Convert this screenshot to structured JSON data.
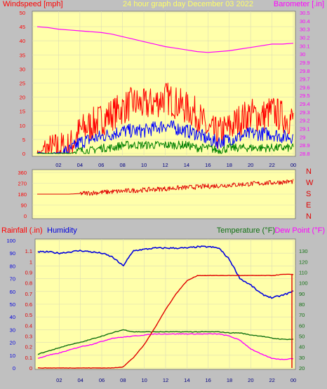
{
  "page": {
    "title": "24 hour graph day   December 03 2022",
    "colors": {
      "bg": "#c0c0c0",
      "plot": "#ffffaa",
      "grid": "#dcdcb4",
      "wind": "#ff0000",
      "avg": "#0000ff",
      "low": "#008000",
      "baro": "#ff00ff",
      "dir": "#e00000",
      "hum": "#0000e0",
      "temp": "#107010",
      "dew": "#ff00ff",
      "rain": "#e00000"
    }
  },
  "chart_data": [
    {
      "type": "line",
      "title": "24 hour graph day   December 03 2022",
      "ylabel_left": "Windspeed [mph]",
      "ylabel_right": "Barometer [.in]",
      "x_ticks": [
        "02",
        "04",
        "06",
        "08",
        "10",
        "12",
        "14",
        "16",
        "18",
        "20",
        "22",
        "00"
      ],
      "ylim_left": [
        0,
        50
      ],
      "y_ticks_left": [
        "0",
        "5",
        "10",
        "15",
        "20",
        "25",
        "30",
        "35",
        "40",
        "45",
        "50"
      ],
      "ylim_right": [
        28.8,
        30.5
      ],
      "y_ticks_right": [
        "28.8",
        "28.9",
        "29",
        "29.1",
        "29.2",
        "29.3",
        "29.4",
        "29.5",
        "29.6",
        "29.7",
        "29.8",
        "29.9",
        "30",
        "30.1",
        "30.2",
        "30.3",
        "30.4",
        "30.5"
      ],
      "hours": [
        0,
        1,
        2,
        3,
        4,
        5,
        6,
        7,
        8,
        9,
        10,
        11,
        12,
        13,
        14,
        15,
        16,
        17,
        18,
        19,
        20,
        21,
        22,
        23,
        24
      ],
      "series": [
        {
          "name": "gust",
          "values": [
            0,
            1,
            2,
            2,
            8,
            10,
            12,
            14,
            16,
            18,
            17,
            18,
            20,
            18,
            16,
            14,
            8,
            7,
            9,
            12,
            14,
            13,
            15,
            13,
            12
          ]
        },
        {
          "name": "wind",
          "values": [
            0,
            0,
            0,
            1,
            4,
            5,
            6,
            7,
            8,
            8,
            8,
            9,
            10,
            9,
            8,
            7,
            5,
            4,
            5,
            6,
            7,
            7,
            7,
            6,
            6
          ]
        },
        {
          "name": "low",
          "values": [
            0,
            0,
            0,
            0,
            1,
            1,
            2,
            2,
            3,
            3,
            3,
            3,
            3,
            3,
            3,
            2,
            2,
            1,
            2,
            2,
            2,
            2,
            2,
            2,
            2
          ]
        },
        {
          "name": "barometer",
          "values": [
            30.33,
            30.32,
            30.3,
            30.29,
            30.28,
            30.27,
            30.26,
            30.24,
            30.21,
            30.18,
            30.15,
            30.12,
            30.09,
            30.07,
            30.05,
            30.03,
            30.02,
            30.03,
            30.04,
            30.06,
            30.08,
            30.1,
            30.12,
            30.12,
            30.13
          ]
        }
      ]
    },
    {
      "type": "scatter",
      "y_ticks": [
        "0",
        "90",
        "180",
        "270",
        "360"
      ],
      "ylim": [
        0,
        360
      ],
      "compass_labels": [
        "N",
        "W",
        "S",
        "E",
        "N"
      ],
      "x_ticks": [],
      "hours": [
        0,
        1,
        2,
        3,
        4,
        5,
        6,
        7,
        8,
        9,
        10,
        11,
        12,
        13,
        14,
        15,
        16,
        17,
        18,
        19,
        20,
        21,
        22,
        23,
        24
      ],
      "values": [
        180,
        180,
        180,
        180,
        185,
        190,
        195,
        200,
        205,
        210,
        215,
        220,
        225,
        230,
        235,
        240,
        245,
        250,
        255,
        260,
        265,
        270,
        275,
        280,
        285
      ]
    },
    {
      "type": "line",
      "label_rain": "Rainfall (.in)",
      "label_humidity": "Humidity",
      "label_temp": "Temperature (°F)",
      "label_dew": "Dew Point (°F)",
      "x_ticks": [
        "02",
        "04",
        "06",
        "08",
        "10",
        "12",
        "14",
        "16",
        "18",
        "20",
        "22",
        "00"
      ],
      "ylim_humidity": [
        0,
        100
      ],
      "y_ticks_humidity": [
        "0",
        "10",
        "20",
        "30",
        "40",
        "50",
        "60",
        "70",
        "80",
        "90",
        "100"
      ],
      "ylim_rain": [
        0,
        1.2
      ],
      "y_ticks_rain": [
        "0",
        "0.1",
        "0.2",
        "0.3",
        "0.4",
        "0.5",
        "0.6",
        "0.7",
        "0.8",
        "0.9",
        "1",
        "1.1"
      ],
      "ylim_temp": [
        20,
        140
      ],
      "y_ticks_temp": [
        "20",
        "30",
        "40",
        "50",
        "60",
        "70",
        "80",
        "90",
        "100",
        "110",
        "120",
        "130"
      ],
      "hours": [
        0,
        1,
        2,
        3,
        4,
        5,
        6,
        7,
        8,
        9,
        10,
        11,
        12,
        13,
        14,
        15,
        16,
        17,
        18,
        19,
        20,
        21,
        22,
        23,
        24
      ],
      "series": [
        {
          "name": "humidity",
          "values": [
            91,
            91,
            90,
            91,
            92,
            91,
            90,
            87,
            80,
            92,
            93,
            94,
            94,
            94,
            94,
            95,
            95,
            94,
            85,
            70,
            65,
            58,
            55,
            57,
            60
          ]
        },
        {
          "name": "rain",
          "values": [
            0,
            0,
            0,
            0,
            0,
            0,
            0,
            0,
            0.01,
            0.1,
            0.22,
            0.38,
            0.55,
            0.7,
            0.82,
            0.87,
            0.87,
            0.87,
            0.87,
            0.87,
            0.87,
            0.87,
            0.87,
            0.88,
            0.88
          ]
        },
        {
          "name": "temperature",
          "values": [
            33,
            36,
            39,
            42,
            44,
            47,
            50,
            53,
            56,
            54,
            54,
            54,
            54,
            54,
            54,
            54,
            54,
            54,
            53,
            53,
            51,
            50,
            48,
            47,
            47
          ]
        },
        {
          "name": "dew point",
          "values": [
            29,
            32,
            34,
            37,
            40,
            42,
            45,
            48,
            49,
            50,
            51,
            52,
            52,
            52,
            52,
            52,
            52,
            52,
            50,
            46,
            38,
            33,
            29,
            28,
            29
          ]
        }
      ]
    }
  ]
}
